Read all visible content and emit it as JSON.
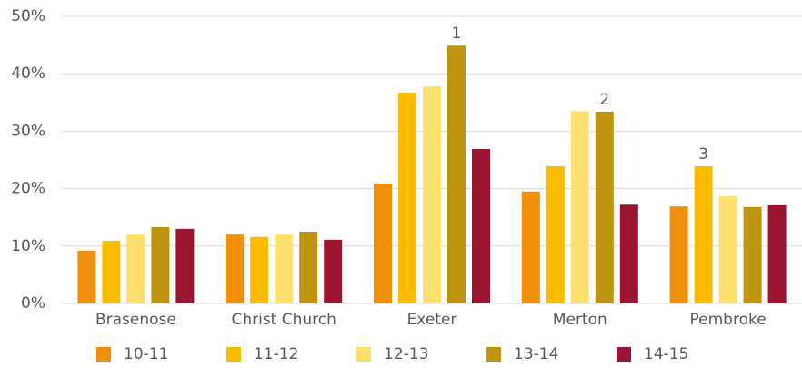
{
  "chart_data": {
    "type": "bar",
    "categories": [
      "Brasenose",
      "Christ Church",
      "Exeter",
      "Merton",
      "Pembroke"
    ],
    "series": [
      {
        "name": "10-11",
        "color": "#f0900a",
        "values": [
          9.2,
          12.0,
          20.9,
          19.5,
          16.9
        ]
      },
      {
        "name": "11-12",
        "color": "#fbbc00",
        "values": [
          10.9,
          11.6,
          36.7,
          23.9,
          23.9
        ]
      },
      {
        "name": "12-13",
        "color": "#ffdf6e",
        "values": [
          12.0,
          12.0,
          37.8,
          33.5,
          18.7
        ]
      },
      {
        "name": "13-14",
        "color": "#bf9510",
        "values": [
          13.3,
          12.5,
          44.9,
          33.4,
          16.8
        ]
      },
      {
        "name": "14-15",
        "color": "#9b1530",
        "values": [
          13.0,
          11.1,
          26.9,
          17.2,
          17.1
        ]
      }
    ],
    "annotations": [
      {
        "text": "1",
        "category": "Exeter",
        "series": "13-14"
      },
      {
        "text": "2",
        "category": "Merton",
        "series": "13-14"
      },
      {
        "text": "3",
        "category": "Pembroke",
        "series": "11-12"
      }
    ],
    "ylim": [
      0,
      50
    ],
    "yticks": [
      {
        "value": 0,
        "label": "0%"
      },
      {
        "value": 10,
        "label": "10%"
      },
      {
        "value": 20,
        "label": "20%"
      },
      {
        "value": 30,
        "label": "30%"
      },
      {
        "value": 40,
        "label": "40%"
      },
      {
        "value": 50,
        "label": "50%"
      }
    ],
    "grid": true,
    "legend": "bottom"
  }
}
